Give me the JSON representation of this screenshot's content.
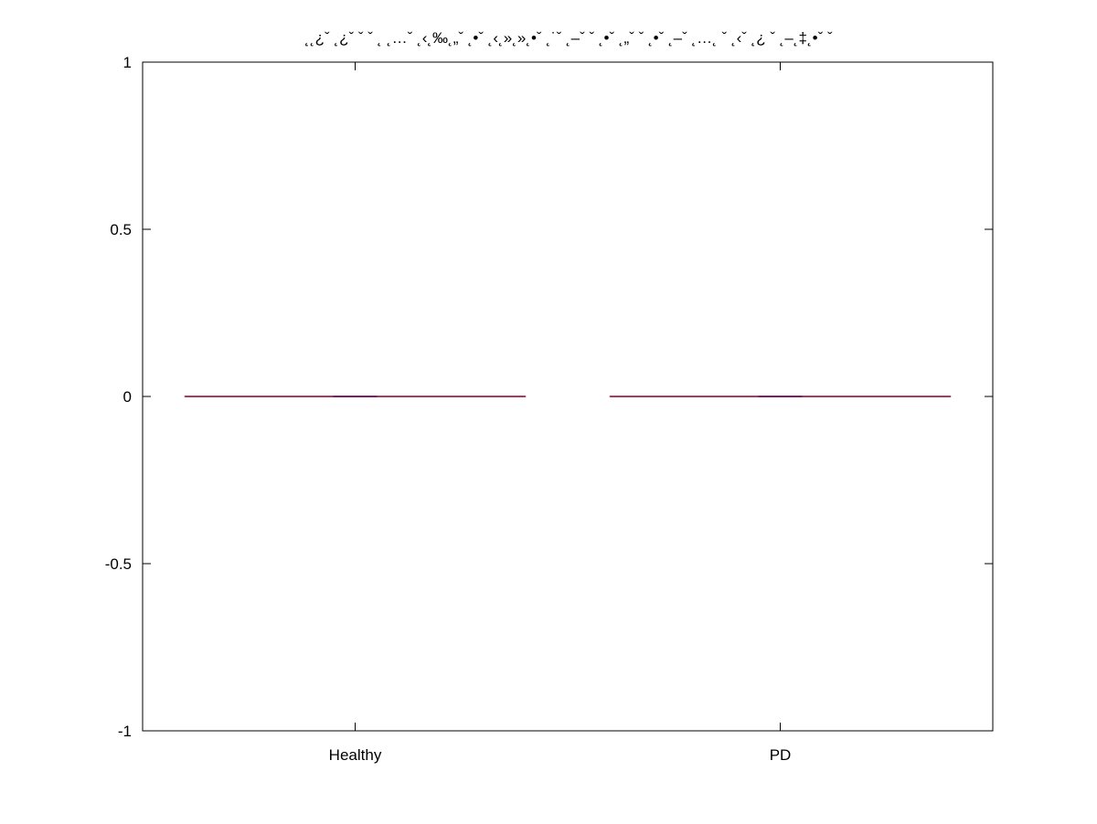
{
  "chart_data": {
    "type": "box",
    "title": "˛˛¿ˇ ˛¿ˇ ˇ ˇ ˛ ˛…ˇ ˛‹˛‰˛„ˇ ˛•ˇ ˛‹˛»˛»˛•ˇ ˛˙ˇ ˛–ˇ ˇ ˛•ˇ ˛„ˇ ˇ ˛•ˇ ˛–ˇ ˛…˛ ˇ ˛‹ˇ ˛¿ ˇ ˛–˛‡˛•ˇ ˇ",
    "xlabel": "",
    "ylabel": "",
    "categories": [
      "Healthy",
      "PD"
    ],
    "yticks": [
      "1",
      "0.5",
      "0",
      "-0.5",
      "-1"
    ],
    "ylim": [
      -1,
      1
    ],
    "series": [
      {
        "min": 0,
        "q1": 0,
        "median": 0,
        "q3": 0,
        "max": 0
      },
      {
        "min": 0,
        "q1": 0,
        "median": 0,
        "q3": 0,
        "max": 0
      }
    ],
    "box_color": "#9b1f4b",
    "median_color": "#6b0b5b",
    "grid": false,
    "legend": "none"
  }
}
